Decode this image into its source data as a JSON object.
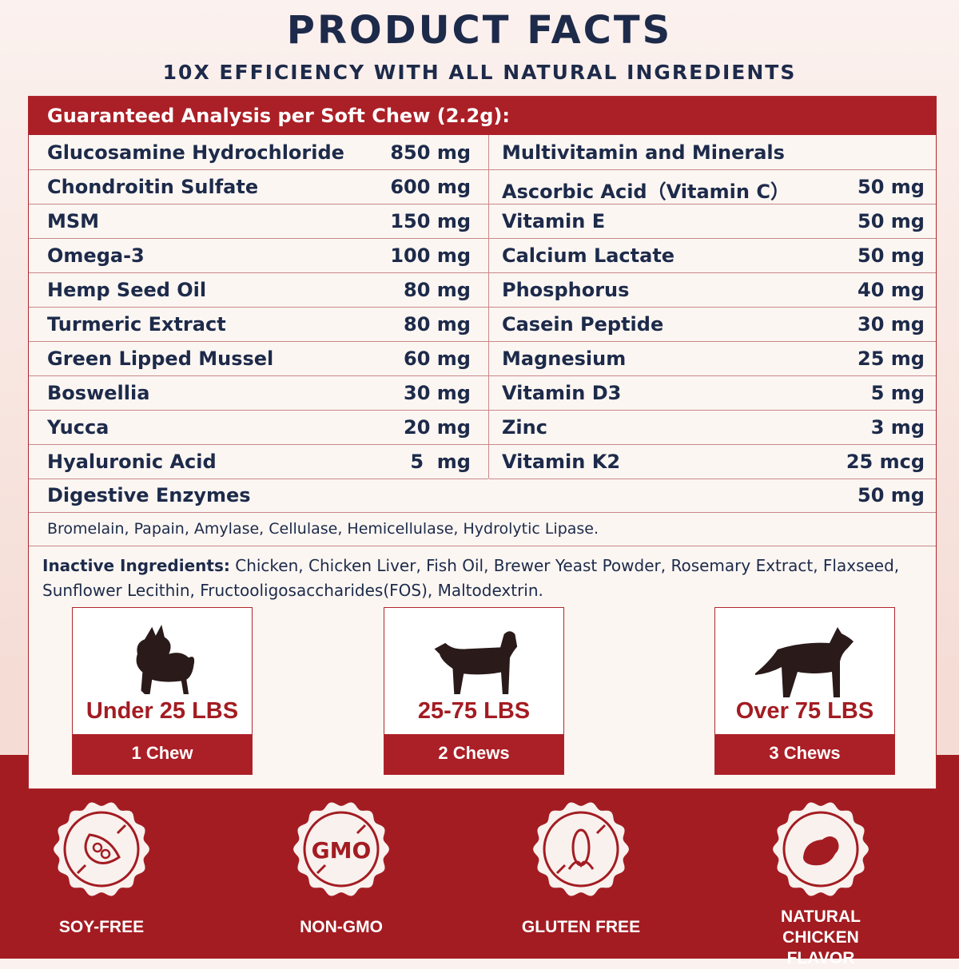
{
  "title": "PRODUCT FACTS",
  "subtitle": "10X EFFICIENCY WITH ALL NATURAL INGREDIENTS",
  "analysis": {
    "header": "Guaranteed Analysis per Soft Chew (2.2g):",
    "left": [
      {
        "name": "Glucosamine Hydrochloride",
        "amount": "850 mg"
      },
      {
        "name": "Chondroitin Sulfate",
        "amount": "600 mg"
      },
      {
        "name": "MSM",
        "amount": "150 mg"
      },
      {
        "name": "Omega-3",
        "amount": "100 mg"
      },
      {
        "name": "Hemp Seed Oil",
        "amount": "80 mg"
      },
      {
        "name": "Turmeric Extract",
        "amount": "80 mg"
      },
      {
        "name": "Green Lipped Mussel",
        "amount": "60 mg"
      },
      {
        "name": "Boswellia",
        "amount": "30 mg"
      },
      {
        "name": "Yucca",
        "amount": "20 mg"
      },
      {
        "name": "Hyaluronic Acid",
        "amount": "5  mg"
      }
    ],
    "right": [
      {
        "name": "Multivitamin and Minerals",
        "amount": ""
      },
      {
        "name": "Ascorbic Acid（Vitamin C）",
        "amount": "50 mg"
      },
      {
        "name": "Vitamin E",
        "amount": "50 mg"
      },
      {
        "name": "Calcium Lactate",
        "amount": "50 mg"
      },
      {
        "name": "Phosphorus",
        "amount": "40 mg"
      },
      {
        "name": "Casein Peptide",
        "amount": "30 mg"
      },
      {
        "name": "Magnesium",
        "amount": "25 mg"
      },
      {
        "name": "Vitamin D3",
        "amount": "5 mg"
      },
      {
        "name": "Zinc",
        "amount": "3 mg"
      },
      {
        "name": "Vitamin K2",
        "amount": "25 mcg"
      }
    ],
    "enzymes": {
      "name": "Digestive Enzymes",
      "amount": "50 mg",
      "detail": "Bromelain, Papain, Amylase, Cellulase, Hemicellulase, Hydrolytic Lipase."
    },
    "inactive_label": "Inactive Ingredients:",
    "inactive_text": " Chicken, Chicken Liver, Fish Oil, Brewer Yeast Powder, Rosemary Extract, Flaxseed, Sunflower Lecithin, Fructooligosaccharides(FOS), Maltodextrin."
  },
  "dosage": [
    {
      "weight": "Under 25 LBS",
      "dose": "1 Chew",
      "icon": "small-dog-icon"
    },
    {
      "weight": "25-75 LBS",
      "dose": "2 Chews",
      "icon": "medium-dog-icon"
    },
    {
      "weight": "Over 75 LBS",
      "dose": "3 Chews",
      "icon": "large-dog-icon"
    }
  ],
  "badges": [
    {
      "label": "SOY-FREE",
      "icon": "no-soy-icon"
    },
    {
      "label": "NON-GMO",
      "icon": "no-gmo-icon",
      "icon_text": "GMO"
    },
    {
      "label": "GLUTEN FREE",
      "icon": "no-gluten-icon"
    },
    {
      "label": "NATURAL CHICKEN FLAVOR",
      "icon": "chicken-icon"
    }
  ],
  "colors": {
    "navy": "#1d2a4a",
    "red": "#ab1f26"
  }
}
